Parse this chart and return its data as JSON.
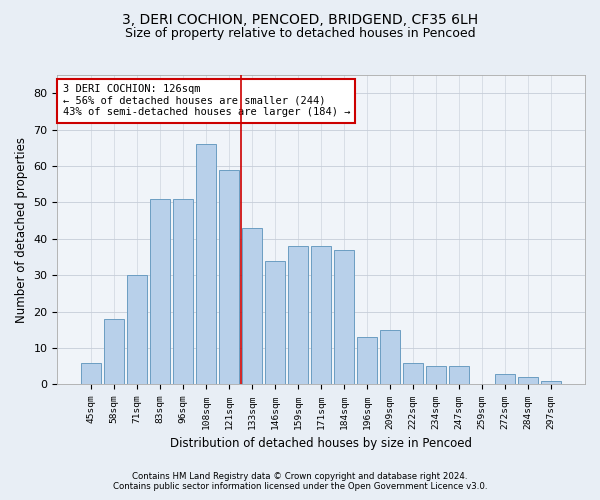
{
  "title": "3, DERI COCHION, PENCOED, BRIDGEND, CF35 6LH",
  "subtitle": "Size of property relative to detached houses in Pencoed",
  "xlabel": "Distribution of detached houses by size in Pencoed",
  "ylabel": "Number of detached properties",
  "categories": [
    "45sqm",
    "58sqm",
    "71sqm",
    "83sqm",
    "96sqm",
    "108sqm",
    "121sqm",
    "133sqm",
    "146sqm",
    "159sqm",
    "171sqm",
    "184sqm",
    "196sqm",
    "209sqm",
    "222sqm",
    "234sqm",
    "247sqm",
    "259sqm",
    "272sqm",
    "284sqm",
    "297sqm"
  ],
  "values": [
    6,
    18,
    30,
    51,
    51,
    66,
    59,
    43,
    34,
    38,
    38,
    37,
    13,
    15,
    6,
    5,
    5,
    0,
    3,
    2,
    1
  ],
  "bar_color": "#b8d0ea",
  "bar_edge_color": "#6b9dc2",
  "vline_color": "#cc0000",
  "annotation_text": "3 DERI COCHION: 126sqm\n← 56% of detached houses are smaller (244)\n43% of semi-detached houses are larger (184) →",
  "annotation_box_color": "#ffffff",
  "annotation_box_edge": "#cc0000",
  "ylim": [
    0,
    85
  ],
  "yticks": [
    0,
    10,
    20,
    30,
    40,
    50,
    60,
    70,
    80
  ],
  "footer1": "Contains HM Land Registry data © Crown copyright and database right 2024.",
  "footer2": "Contains public sector information licensed under the Open Government Licence v3.0.",
  "bg_color": "#e8eef5",
  "plot_bg_color": "#f0f4f9",
  "title_fontsize": 10,
  "subtitle_fontsize": 9,
  "xlabel_fontsize": 8.5,
  "ylabel_fontsize": 8.5
}
